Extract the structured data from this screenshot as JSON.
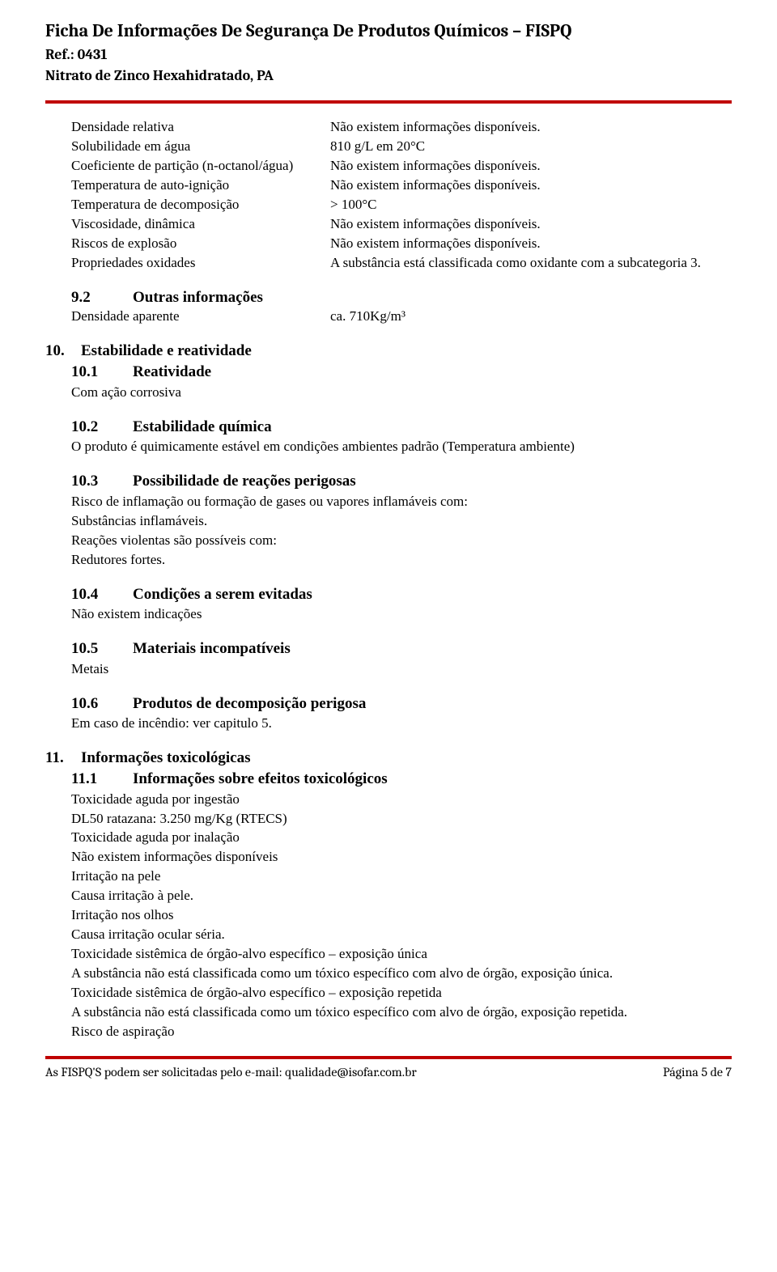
{
  "header": {
    "title": "Ficha De Informações De Segurança De Produtos Químicos – FISPQ",
    "ref": "Ref.: 0431",
    "product": "Nitrato de Zinco Hexahidratado, PA"
  },
  "section9_props": [
    {
      "label": "Densidade relativa",
      "value": "Não existem informações disponíveis."
    },
    {
      "label": "Solubilidade em água",
      "value": "810 g/L em 20°C"
    },
    {
      "label": "Coeficiente de partição (n-octanol/água)",
      "value": "Não existem informações disponíveis."
    },
    {
      "label": "Temperatura de auto-ignição",
      "value": "Não existem informações disponíveis."
    },
    {
      "label": "Temperatura de decomposição",
      "value": "> 100°C"
    },
    {
      "label": "Viscosidade, dinâmica",
      "value": "Não existem informações disponíveis."
    },
    {
      "label": "Riscos de explosão",
      "value": "Não existem informações disponíveis."
    },
    {
      "label": "Propriedades oxidades",
      "value": "A substância  está classificada como oxidante com a subcategoria 3."
    }
  ],
  "sec9_2": {
    "num": "9.2",
    "title": "Outras informações",
    "row": {
      "label": "Densidade aparente",
      "value": "ca. 710Kg/m³"
    }
  },
  "sec10": {
    "num": "10.",
    "title": "Estabilidade e reatividade",
    "s1": {
      "num": "10.1",
      "title": "Reatividade",
      "body": "Com ação corrosiva"
    },
    "s2": {
      "num": "10.2",
      "title": "Estabilidade química",
      "body": "O produto é quimicamente estável em condições ambientes padrão (Temperatura ambiente)"
    },
    "s3": {
      "num": "10.3",
      "title": "Possibilidade de reações perigosas",
      "lines": [
        "Risco de inflamação ou formação de gases ou vapores inflamáveis com:",
        "Substâncias inflamáveis.",
        "Reações violentas são possíveis com:",
        "Redutores fortes."
      ]
    },
    "s4": {
      "num": "10.4",
      "title": "Condições a serem evitadas",
      "body": "Não existem indicações"
    },
    "s5": {
      "num": "10.5",
      "title": "Materiais incompatíveis",
      "body": "Metais"
    },
    "s6": {
      "num": "10.6",
      "title": "Produtos de decomposição perigosa",
      "body": "Em caso de incêndio: ver capitulo 5."
    }
  },
  "sec11": {
    "num": "11.",
    "title": "Informações toxicológicas",
    "s1": {
      "num": "11.1",
      "title": "Informações sobre efeitos toxicológicos",
      "lines": [
        "Toxicidade aguda por ingestão",
        "DL50 ratazana: 3.250 mg/Kg (RTECS)",
        "Toxicidade aguda por inalação",
        "Não existem informações disponíveis",
        "Irritação na pele",
        "Causa irritação à pele.",
        "Irritação nos olhos",
        "Causa irritação ocular séria.",
        "Toxicidade sistêmica de órgão-alvo específico – exposição única",
        "A substância não está classificada como um tóxico específico com alvo de órgão, exposição única.",
        "Toxicidade sistêmica de órgão-alvo específico – exposição repetida",
        "A substância não está classificada como um tóxico específico com alvo de órgão, exposição repetida.",
        "Risco de aspiração"
      ]
    }
  },
  "footer": {
    "left": "As FISPQ'S podem ser solicitadas pelo e-mail: qualidade@isofar.com.br",
    "right": "Página 5 de 7"
  }
}
